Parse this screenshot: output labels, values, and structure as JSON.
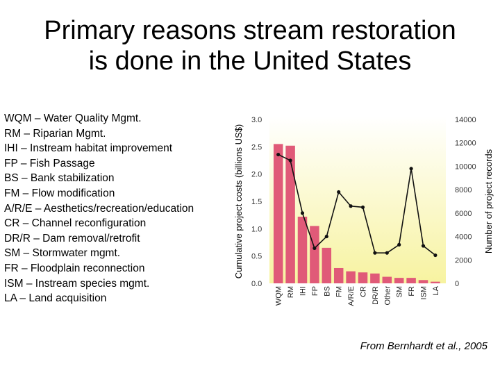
{
  "title_line1": "Primary reasons stream restoration",
  "title_line2": "is done in the United States",
  "legend_items": [
    "WQM – Water Quality Mgmt.",
    "RM – Riparian Mgmt.",
    "IHI – Instream habitat improvement",
    "FP – Fish Passage",
    "BS – Bank stabilization",
    "FM – Flow modification",
    "A/R/E – Aesthetics/recreation/education",
    "CR – Channel reconfiguration",
    "DR/R – Dam removal/retrofit",
    "SM – Stormwater mgmt.",
    "FR – Floodplain reconnection",
    "ISM – Instream species mgmt.",
    "LA – Land acquisition"
  ],
  "credit": "From Bernhardt et al., 2005",
  "colors": {
    "bar": "#e05a78",
    "line": "#111111",
    "plot_bg_top": "#ffffff",
    "plot_bg_bottom": "#f7f3a0"
  },
  "chart_data": {
    "type": "bar",
    "title": "",
    "categories": [
      "WQM",
      "RM",
      "IHI",
      "FP",
      "BS",
      "FM",
      "A/R/E",
      "CR",
      "DR/R",
      "Other",
      "SM",
      "FR",
      "ISM",
      "LA"
    ],
    "series": [
      {
        "name": "Cumulative project costs (billions US$)",
        "type": "bar",
        "axis": "left",
        "values": [
          2.55,
          2.52,
          1.22,
          1.05,
          0.65,
          0.28,
          0.22,
          0.2,
          0.18,
          0.12,
          0.1,
          0.1,
          0.06,
          0.03
        ]
      },
      {
        "name": "Number of project records",
        "type": "line",
        "axis": "right",
        "x_categories": [
          "WQM",
          "RM",
          "IHI",
          "FP",
          "BS",
          "FM",
          "A/R/E",
          "CR",
          "DR/R",
          "Other",
          "SM",
          "FR",
          "ISM",
          "LA"
        ],
        "values": [
          11000,
          10500,
          6000,
          3000,
          4000,
          7800,
          6600,
          6500,
          2600,
          2600,
          3300,
          9800,
          3200,
          2400
        ]
      }
    ],
    "ylabel_left": "Cumulative project costs (billions US$)",
    "ylabel_right": "Number of project records",
    "ylim_left": [
      0,
      3.0
    ],
    "ylim_right": [
      0,
      14000
    ],
    "yticks_left": [
      "0.0",
      "0.5",
      "1.0",
      "1.5",
      "2.0",
      "2.5",
      "3.0"
    ],
    "yticks_right": [
      "0",
      "2000",
      "4000",
      "6000",
      "8000",
      "10000",
      "12000",
      "14000"
    ],
    "grid": false
  }
}
